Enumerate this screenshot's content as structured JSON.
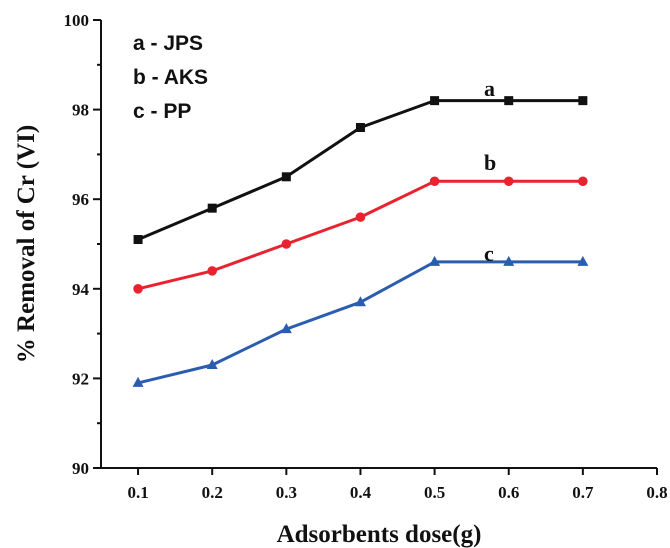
{
  "chart_data": {
    "type": "line",
    "xlabel": "Adsorbents dose(g)",
    "ylabel": "% Removal of Cr (VI)",
    "xlim": [
      0.05,
      0.8
    ],
    "ylim": [
      90,
      100
    ],
    "x_ticks": [
      "0.1",
      "0.2",
      "0.3",
      "0.4",
      "0.5",
      "0.6",
      "0.7",
      "0.8"
    ],
    "y_ticks": [
      "90",
      "92",
      "94",
      "96",
      "98",
      "100"
    ],
    "x_tick_values": [
      0.1,
      0.2,
      0.3,
      0.4,
      0.5,
      0.6,
      0.7,
      0.8
    ],
    "y_tick_values": [
      90,
      92,
      94,
      96,
      98,
      100
    ],
    "legend": [
      "a - JPS",
      "b - AKS",
      "c - PP"
    ],
    "legend_position": "top-left",
    "grid": false,
    "x": [
      0.1,
      0.2,
      0.3,
      0.4,
      0.5,
      0.6,
      0.7
    ],
    "series": [
      {
        "tag": "a",
        "color": "#111111",
        "marker": "square",
        "values": [
          95.1,
          95.8,
          96.5,
          97.6,
          98.2,
          98.2,
          98.2
        ]
      },
      {
        "tag": "b",
        "color": "#e8232f",
        "marker": "circle",
        "values": [
          94.0,
          94.4,
          95.0,
          95.6,
          96.4,
          96.4,
          96.4
        ]
      },
      {
        "tag": "c",
        "color": "#2a5db0",
        "marker": "triangle",
        "values": [
          91.9,
          92.3,
          93.1,
          93.7,
          94.6,
          94.6,
          94.6
        ]
      }
    ]
  }
}
